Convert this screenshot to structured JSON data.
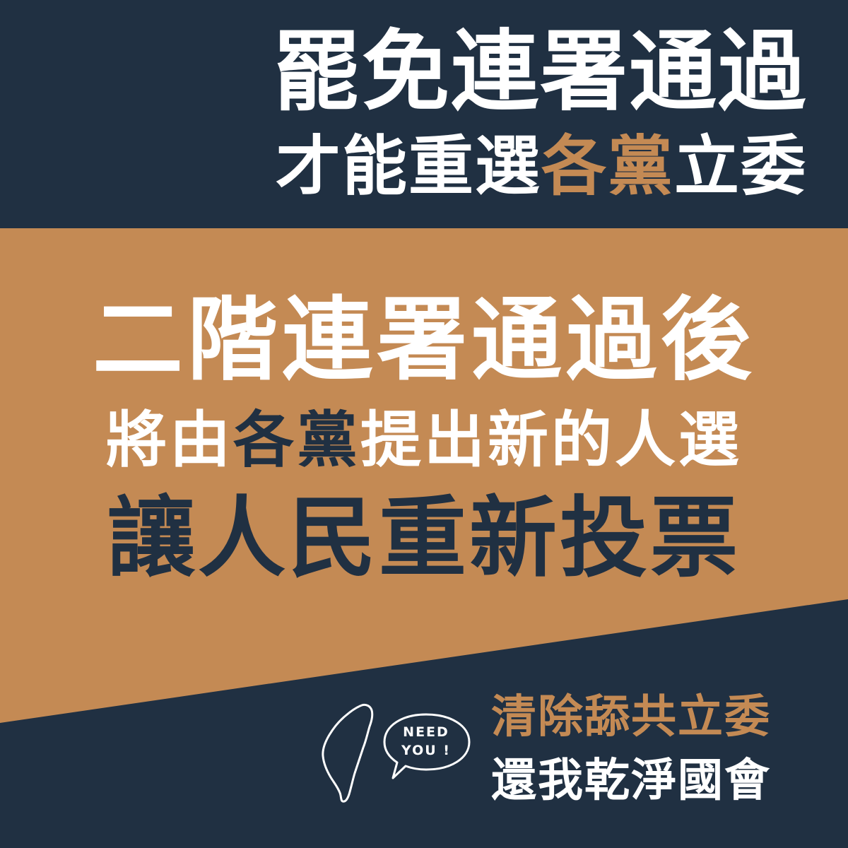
{
  "header": {
    "line_1": "罷免連署通過",
    "line_2_parts": [
      "才能重選",
      "各黨",
      "立委"
    ]
  },
  "main": {
    "line_1": "二階連署通過後",
    "line_2_parts": [
      "將由",
      "各黨",
      "提出新的人選"
    ],
    "line_3": "讓人民重新投票"
  },
  "footer": {
    "line_1": "清除舔共立委",
    "line_2": "還我乾淨國會",
    "bubble_line_1": "NEED",
    "bubble_line_2": "YOU !"
  },
  "icons": {
    "map": "taiwan-outline-icon",
    "bubble": "speech-bubble-icon"
  },
  "colors": {
    "navy": "#203042",
    "tan": "#c48a54",
    "white": "#ffffff"
  }
}
